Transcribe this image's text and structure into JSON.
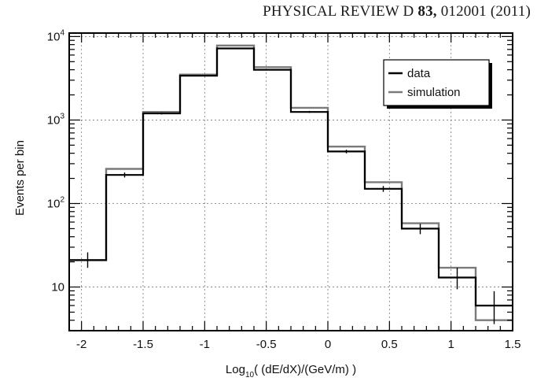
{
  "header": {
    "journal": "PHYSICAL REVIEW D",
    "volume": "83,",
    "article": "012001 (2011)"
  },
  "chart_data": {
    "type": "histogram",
    "xlabel_main": "Log",
    "xlabel_sub": "10",
    "xlabel_rest": "( (dE/dX)/(GeV/m) )",
    "ylabel": "Events per bin",
    "xlim": [
      -2.1,
      1.5
    ],
    "ylim": [
      3,
      11000
    ],
    "yscale": "log",
    "grid": true,
    "legend_position": "top-right",
    "x_ticks": [
      {
        "value": -2,
        "label": "-2"
      },
      {
        "value": -1.5,
        "label": "-1.5"
      },
      {
        "value": -1,
        "label": "-1"
      },
      {
        "value": -0.5,
        "label": "-0.5"
      },
      {
        "value": 0,
        "label": "0"
      },
      {
        "value": 0.5,
        "label": "0.5"
      },
      {
        "value": 1,
        "label": "1"
      },
      {
        "value": 1.5,
        "label": "1.5"
      }
    ],
    "y_ticks": [
      {
        "value": 10,
        "base": "10",
        "exp": ""
      },
      {
        "value": 100,
        "base": "10",
        "exp": "2"
      },
      {
        "value": 1000,
        "base": "10",
        "exp": "3"
      },
      {
        "value": 10000,
        "base": "10",
        "exp": "4"
      }
    ],
    "bin_edges": [
      -2.1,
      -1.8,
      -1.5,
      -1.2,
      -0.9,
      -0.6,
      -0.3,
      0.0,
      0.3,
      0.6,
      0.9,
      1.2,
      1.5
    ],
    "series": [
      {
        "name": "data",
        "color": "#000000",
        "values": [
          21,
          220,
          1200,
          3400,
          7200,
          4000,
          1250,
          420,
          150,
          50,
          13,
          6
        ],
        "errors_low": [
          4,
          15,
          35,
          60,
          85,
          65,
          35,
          21,
          12,
          7,
          3.6,
          2.4
        ],
        "errors_high": [
          5,
          15,
          35,
          60,
          85,
          65,
          35,
          21,
          12,
          7,
          4.0,
          2.9
        ]
      },
      {
        "name": "simulation",
        "color": "#7a7a7a",
        "values": [
          21,
          260,
          1250,
          3500,
          7800,
          4300,
          1400,
          480,
          180,
          58,
          17,
          4
        ]
      }
    ]
  }
}
